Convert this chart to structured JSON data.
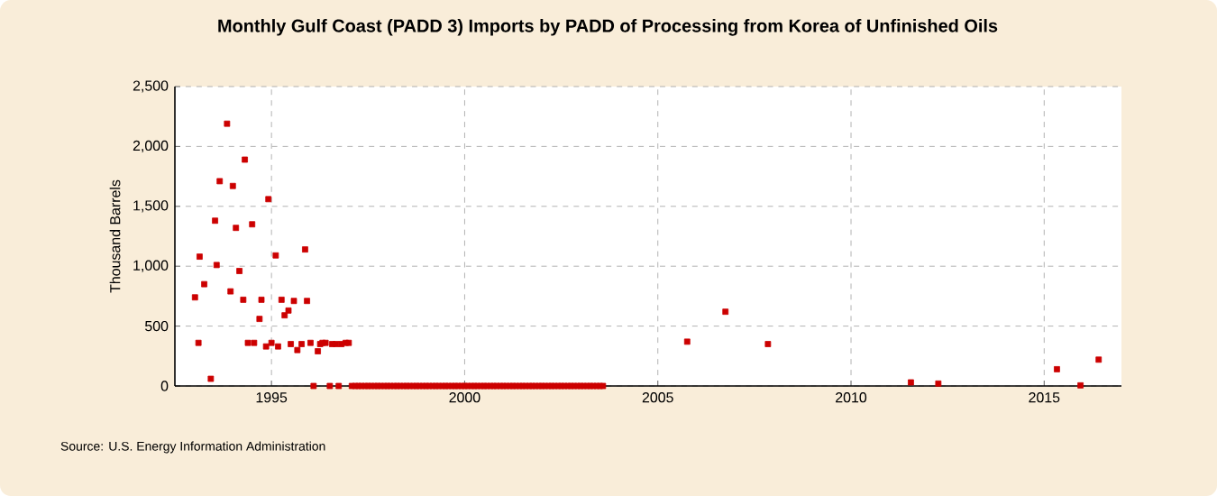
{
  "chart_data": {
    "type": "scatter",
    "title": "Monthly Gulf Coast (PADD 3) Imports by PADD of Processing from Korea of Unfinished Oils",
    "ylabel": "Thousand Barrels",
    "annotations": [
      "Source: U.S. Energy Information Administration"
    ],
    "xlim": [
      1992.5,
      2017
    ],
    "xticks": [
      1995,
      2000,
      2005,
      2010,
      2015
    ],
    "ylim": [
      0,
      2500
    ],
    "yticks": [
      {
        "value": 0,
        "label": "0"
      },
      {
        "value": 500,
        "label": "500"
      },
      {
        "value": 1000,
        "label": "1,000"
      },
      {
        "value": 1500,
        "label": "1,500"
      },
      {
        "value": 2000,
        "label": "2,000"
      },
      {
        "value": 2500,
        "label": "2,500"
      }
    ],
    "grid": true,
    "marker": "square",
    "series": [
      {
        "color": "#cc0000",
        "x": [
          1993.02,
          1993.11,
          1993.14,
          1993.26,
          1993.43,
          1993.54,
          1993.58,
          1993.66,
          1993.85,
          1993.94,
          1994.0,
          1994.08,
          1994.17,
          1994.27,
          1994.31,
          1994.39,
          1994.5,
          1994.55,
          1994.69,
          1994.74,
          1994.86,
          1994.92,
          1995.0,
          1995.11,
          1995.17,
          1995.26,
          1995.34,
          1995.44,
          1995.5,
          1995.58,
          1995.67,
          1995.78,
          1995.87,
          1995.92,
          1996.01,
          1996.09,
          1996.2,
          1996.26,
          1996.32,
          1996.4,
          1996.51,
          1996.57,
          1996.67,
          1996.74,
          1996.81,
          1996.92,
          1997.0,
          1997.08,
          1997.17,
          1997.25,
          1997.33,
          1997.42,
          1997.5,
          1997.58,
          1997.67,
          1997.75,
          1997.83,
          1997.92,
          1998.0,
          1998.08,
          1998.17,
          1998.25,
          1998.33,
          1998.42,
          1998.5,
          1998.58,
          1998.67,
          1998.75,
          1998.83,
          1998.92,
          1999.0,
          1999.08,
          1999.17,
          1999.25,
          1999.33,
          1999.42,
          1999.5,
          1999.58,
          1999.67,
          1999.75,
          1999.83,
          1999.92,
          2000.0,
          2000.08,
          2000.17,
          2000.25,
          2000.33,
          2000.42,
          2000.5,
          2000.58,
          2000.67,
          2000.75,
          2000.83,
          2000.92,
          2001.0,
          2001.08,
          2001.17,
          2001.25,
          2001.33,
          2001.42,
          2001.5,
          2001.58,
          2001.67,
          2001.75,
          2001.83,
          2001.92,
          2002.0,
          2002.08,
          2002.17,
          2002.25,
          2002.33,
          2002.42,
          2002.5,
          2002.58,
          2002.67,
          2002.75,
          2002.83,
          2002.92,
          2003.0,
          2003.08,
          2003.17,
          2003.25,
          2003.33,
          2003.42,
          2003.5,
          2003.58,
          2005.76,
          2006.75,
          2007.85,
          2011.55,
          2012.26,
          2015.33,
          2015.94,
          2016.41
        ],
        "values": [
          740,
          360,
          1080,
          850,
          60,
          1380,
          1010,
          1710,
          2190,
          790,
          1670,
          1320,
          960,
          720,
          1890,
          360,
          1350,
          360,
          560,
          720,
          330,
          1560,
          360,
          1090,
          330,
          720,
          590,
          630,
          350,
          710,
          300,
          350,
          1140,
          710,
          360,
          0,
          290,
          350,
          360,
          360,
          0,
          350,
          350,
          0,
          350,
          360,
          360,
          0,
          0,
          0,
          0,
          0,
          0,
          0,
          0,
          0,
          0,
          0,
          0,
          0,
          0,
          0,
          0,
          0,
          0,
          0,
          0,
          0,
          0,
          0,
          0,
          0,
          0,
          0,
          0,
          0,
          0,
          0,
          0,
          0,
          0,
          0,
          0,
          0,
          0,
          0,
          0,
          0,
          0,
          0,
          0,
          0,
          0,
          0,
          0,
          0,
          0,
          0,
          0,
          0,
          0,
          0,
          0,
          0,
          0,
          0,
          0,
          0,
          0,
          0,
          0,
          0,
          0,
          0,
          0,
          0,
          0,
          0,
          0,
          0,
          0,
          0,
          0,
          0,
          0,
          0,
          370,
          620,
          350,
          30,
          20,
          140,
          5,
          220
        ]
      }
    ]
  }
}
